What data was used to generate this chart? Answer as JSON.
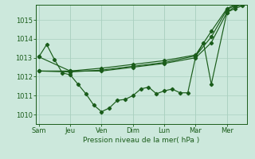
{
  "background_color": "#cce8dc",
  "grid_color": "#aad0c0",
  "line_color": "#1a5c1a",
  "xlabel": "Pression niveau de la mer( hPa )",
  "xtick_labels": [
    "Sam",
    "Jeu",
    "Ven",
    "Dim",
    "Lun",
    "Mar",
    "Mer"
  ],
  "xtick_positions": [
    0,
    2,
    4,
    6,
    8,
    10,
    12
  ],
  "ylim": [
    1009.5,
    1015.8
  ],
  "yticks": [
    1010,
    1011,
    1012,
    1013,
    1014,
    1015
  ],
  "line1_x": [
    0,
    2,
    4,
    6,
    8,
    10,
    11,
    12,
    12.5,
    13
  ],
  "line1_y": [
    1013.05,
    1012.3,
    1012.3,
    1012.5,
    1012.7,
    1013.0,
    1013.8,
    1015.4,
    1015.7,
    1015.8
  ],
  "line2_x": [
    0,
    2,
    4,
    6,
    8,
    10,
    11,
    12,
    12.5,
    13
  ],
  "line2_y": [
    1012.3,
    1012.25,
    1012.35,
    1012.55,
    1012.75,
    1013.1,
    1014.1,
    1015.55,
    1015.75,
    1015.85
  ],
  "line3_x": [
    0,
    2,
    4,
    6,
    8,
    10,
    11,
    12,
    12.5,
    13
  ],
  "line3_y": [
    1012.3,
    1012.3,
    1012.45,
    1012.65,
    1012.85,
    1013.15,
    1014.4,
    1015.6,
    1015.8,
    1015.9
  ],
  "line4_x": [
    0,
    0.5,
    1,
    1.5,
    2,
    2.5,
    3,
    3.5,
    4,
    4.5,
    5,
    5.5,
    6,
    6.5,
    7,
    7.5,
    8,
    8.5,
    9,
    9.5,
    10,
    10.5,
    11,
    12,
    12.5,
    13
  ],
  "line4_y": [
    1013.05,
    1013.7,
    1012.9,
    1012.2,
    1012.1,
    1011.6,
    1011.1,
    1010.5,
    1010.15,
    1010.35,
    1010.75,
    1010.8,
    1011.0,
    1011.35,
    1011.45,
    1011.1,
    1011.25,
    1011.35,
    1011.15,
    1011.15,
    1013.05,
    1013.8,
    1011.6,
    1015.4,
    1015.6,
    1015.75
  ],
  "xlim": [
    -0.2,
    13.3
  ]
}
